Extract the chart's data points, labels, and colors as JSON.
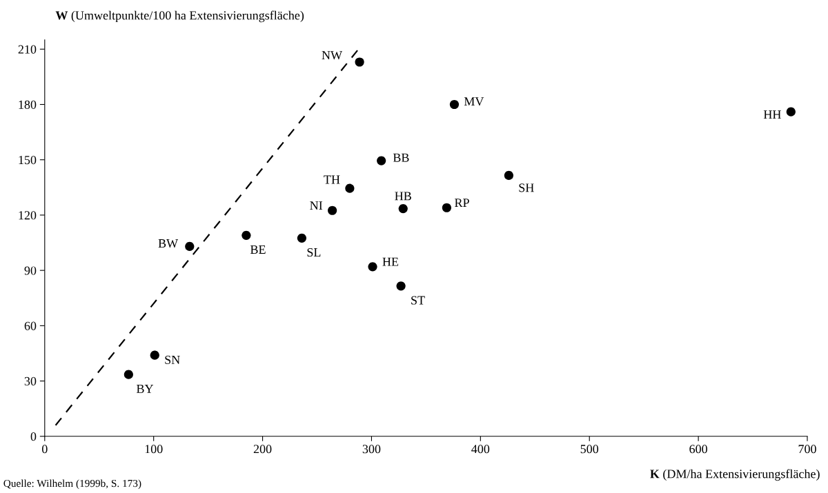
{
  "chart_data": {
    "type": "scatter",
    "xlabel": "K (DM/ha Extensivierungsfläche)",
    "ylabel": "W (Umweltpunkte/100 ha Extensivierungsfläche)",
    "series": [
      {
        "color": "#000000",
        "marker": "circle",
        "x": [
          289,
          376,
          685,
          309,
          280,
          426,
          264,
          329,
          369,
          133,
          185,
          236,
          301,
          327,
          101,
          77
        ],
        "values": [
          203,
          180,
          176,
          149.5,
          134.5,
          141.5,
          122.5,
          123.5,
          124,
          103,
          109,
          107.5,
          92,
          81.5,
          44,
          33.5
        ]
      },
      {
        "type": "line",
        "color": "#000000",
        "line_style": "dashed",
        "marker": "none",
        "x": [
          10,
          288
        ],
        "values": [
          6,
          210
        ]
      }
    ],
    "annotations": [
      {
        "text": "NW",
        "x": 289,
        "y": 203
      },
      {
        "text": "MV",
        "x": 376,
        "y": 180
      },
      {
        "text": "HH",
        "x": 685,
        "y": 176
      },
      {
        "text": "BB",
        "x": 309,
        "y": 149.5
      },
      {
        "text": "TH",
        "x": 280,
        "y": 134.5
      },
      {
        "text": "SH",
        "x": 426,
        "y": 141.5
      },
      {
        "text": "NI",
        "x": 264,
        "y": 122.5
      },
      {
        "text": "HB",
        "x": 329,
        "y": 123.5
      },
      {
        "text": "RP",
        "x": 369,
        "y": 124
      },
      {
        "text": "BW",
        "x": 133,
        "y": 103
      },
      {
        "text": "BE",
        "x": 185,
        "y": 109
      },
      {
        "text": "SL",
        "x": 236,
        "y": 107.5
      },
      {
        "text": "HE",
        "x": 301,
        "y": 92
      },
      {
        "text": "ST",
        "x": 327,
        "y": 81.5
      },
      {
        "text": "SN",
        "x": 101,
        "y": 44
      },
      {
        "text": "BY",
        "x": 77,
        "y": 33.5
      },
      "Quelle: Wilhelm (1999b, S. 173)"
    ],
    "xlim": [
      0,
      700
    ],
    "xticks": [
      0,
      100,
      200,
      300,
      400,
      500,
      600,
      700
    ],
    "ylim": [
      0,
      215
    ],
    "yticks": [
      0,
      30,
      60,
      90,
      120,
      150,
      180,
      210
    ],
    "grid": false,
    "legend": false
  }
}
